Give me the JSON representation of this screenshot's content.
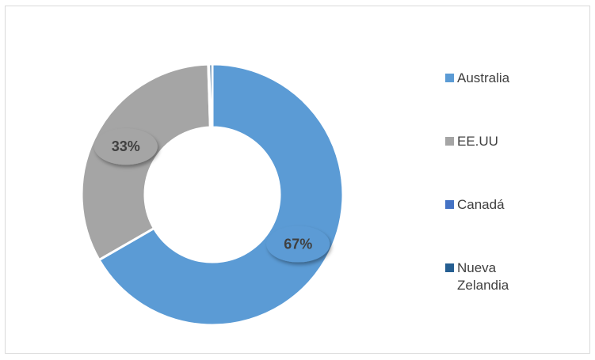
{
  "chart_data": {
    "type": "donut",
    "categories": [
      "Australia",
      "EE.UU",
      "Canadá",
      "Nueva Zelandia"
    ],
    "values": [
      67,
      33,
      0.1,
      0.4
    ],
    "value_labels": [
      "67%",
      "33%",
      null,
      null
    ],
    "colors": [
      "#5b9bd5",
      "#a5a5a5",
      "#4472c4",
      "#255e91"
    ],
    "legend": "right"
  }
}
